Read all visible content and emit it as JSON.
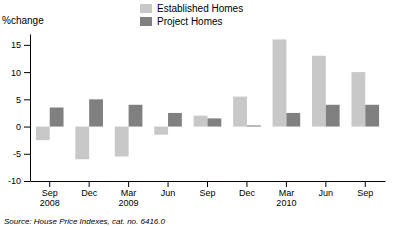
{
  "chart_data": {
    "type": "bar",
    "categories": [
      "Sep\n2008",
      "Dec",
      "Mar\n2009",
      "Jun",
      "Sep",
      "Dec",
      "Mar\n2010",
      "Jun",
      "Sep"
    ],
    "series": [
      {
        "name": "Established Homes",
        "color": "#c8c8c8",
        "values": [
          -2.5,
          -6.0,
          -5.5,
          -1.5,
          2.0,
          5.5,
          16.0,
          13.0,
          10.0
        ]
      },
      {
        "name": "Project Homes",
        "color": "#808080",
        "values": [
          3.5,
          5.0,
          4.0,
          2.5,
          1.5,
          0.2,
          2.5,
          4.0,
          4.0
        ]
      }
    ],
    "ylabel": "%change",
    "ylim": [
      -10,
      17
    ],
    "yticks": [
      -10,
      -5,
      0,
      5,
      10,
      15
    ],
    "annotations": [
      "Source: House Price Indexes, cat. no. 6416.0"
    ],
    "grid": false,
    "legend": "top"
  }
}
